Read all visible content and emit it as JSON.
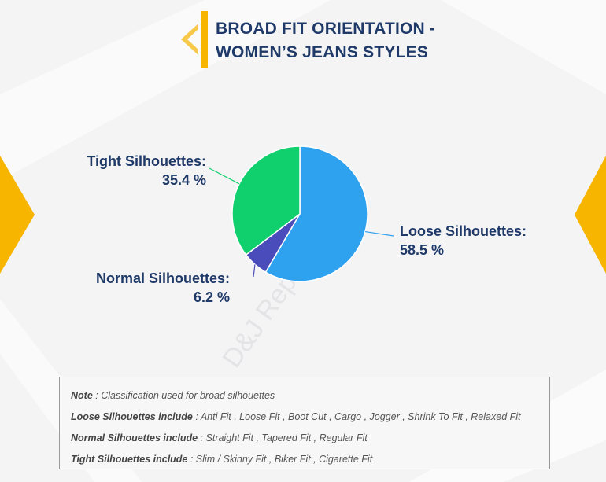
{
  "title": {
    "line1": "BROAD FIT ORIENTATION -",
    "line2": "WOMEN’S JEANS STYLES"
  },
  "chart_data": {
    "type": "pie",
    "slices": [
      {
        "name": "Loose Silhouettes:",
        "value": 58.5,
        "label": "58.5 %",
        "color": "#2ea1ef"
      },
      {
        "name": "Normal Silhouettes:",
        "value": 6.2,
        "label": "6.2 %",
        "color": "#4b4cbb"
      },
      {
        "name": "Tight Silhouettes:",
        "value": 35.4,
        "label": "35.4 %",
        "color": "#10d06d"
      }
    ],
    "start_angle_deg": 0,
    "direction": "clockwise"
  },
  "watermark": "D&J Reports",
  "note": {
    "line1_key": "Note",
    "line1_text": " : Classification used for broad silhouettes",
    "line2_key": "Loose Silhouettes include",
    "line2_text": " : Anti Fit , Loose Fit , Boot Cut , Cargo , Jogger , Shrink To Fit , Relaxed Fit",
    "line3_key": "Normal Silhouettes include",
    "line3_text": " : Straight Fit , Tapered Fit , Regular Fit",
    "line4_key": "Tight Silhouettes include",
    "line4_text": " : Slim / Skinny Fit , Biker Fit , Cigarette Fit"
  },
  "colors": {
    "accent": "#f7b500",
    "title": "#1f3a68",
    "leader_green": "#10d06d",
    "leader_blue": "#2ea1ef",
    "leader_purple": "#4b4cbb"
  }
}
